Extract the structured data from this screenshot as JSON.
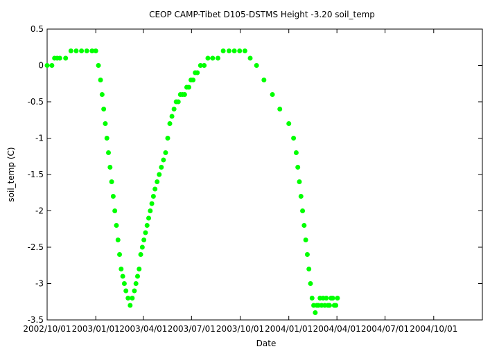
{
  "chart_data": {
    "type": "scatter",
    "title": "CEOP CAMP-Tibet D105-DSTMS Height -3.20 soil_temp",
    "xlabel": "Date",
    "ylabel": "soil_temp (C)",
    "xlim": [
      "2002-10-01",
      "2005-01-01"
    ],
    "ylim": [
      -3.5,
      0.5
    ],
    "x_ticks": [
      "2002/10/01",
      "2003/01/01",
      "2003/04/01",
      "2003/07/01",
      "2003/10/01",
      "2004/01/01",
      "2004/04/01",
      "2004/07/01",
      "2004/10/01"
    ],
    "y_ticks": [
      "0.5",
      "0",
      "-0.5",
      "-1",
      "-1.5",
      "-2",
      "-2.5",
      "-3",
      "-3.5"
    ],
    "grid": false,
    "legend": "none",
    "marker_color": "#00ff00",
    "series": [
      {
        "x": [
          "2002-10-01",
          "2002-10-10",
          "2002-10-15",
          "2002-10-20",
          "2002-10-25",
          "2002-11-05",
          "2002-11-15",
          "2002-11-25",
          "2002-12-05",
          "2002-12-15",
          "2002-12-25",
          "2003-01-01",
          "2003-01-06",
          "2003-01-10",
          "2003-01-13",
          "2003-01-16",
          "2003-01-19",
          "2003-01-22",
          "2003-01-25",
          "2003-01-28",
          "2003-01-31",
          "2003-02-03",
          "2003-02-06",
          "2003-02-09",
          "2003-02-12",
          "2003-02-15",
          "2003-02-18",
          "2003-02-21",
          "2003-02-24",
          "2003-02-27",
          "2003-03-03",
          "2003-03-07",
          "2003-03-11",
          "2003-03-15",
          "2003-03-18",
          "2003-03-21",
          "2003-03-24",
          "2003-03-27",
          "2003-03-30",
          "2003-04-02",
          "2003-04-05",
          "2003-04-08",
          "2003-04-11",
          "2003-04-14",
          "2003-04-17",
          "2003-04-20",
          "2003-04-23",
          "2003-04-27",
          "2003-05-01",
          "2003-05-05",
          "2003-05-09",
          "2003-05-13",
          "2003-05-17",
          "2003-05-21",
          "2003-05-25",
          "2003-05-29",
          "2003-06-02",
          "2003-06-06",
          "2003-06-10",
          "2003-06-14",
          "2003-06-18",
          "2003-06-22",
          "2003-06-26",
          "2003-06-30",
          "2003-07-04",
          "2003-07-08",
          "2003-07-12",
          "2003-07-18",
          "2003-07-25",
          "2003-08-01",
          "2003-08-10",
          "2003-08-20",
          "2003-08-30",
          "2003-09-10",
          "2003-09-20",
          "2003-09-30",
          "2003-10-10",
          "2003-10-20",
          "2003-11-01",
          "2003-11-15",
          "2003-12-01",
          "2003-12-15",
          "2004-01-01",
          "2004-01-10",
          "2004-01-15",
          "2004-01-18",
          "2004-01-21",
          "2004-01-24",
          "2004-01-27",
          "2004-01-30",
          "2004-02-02",
          "2004-02-05",
          "2004-02-08",
          "2004-02-11",
          "2004-02-14",
          "2004-02-17",
          "2004-02-20",
          "2004-02-23",
          "2004-02-26",
          "2004-02-29",
          "2004-03-03",
          "2004-03-06",
          "2004-03-09",
          "2004-03-12",
          "2004-03-15",
          "2004-03-18",
          "2004-03-21",
          "2004-03-24",
          "2004-03-27",
          "2004-03-30",
          "2004-04-02"
        ],
        "y": [
          0.0,
          0.0,
          0.1,
          0.1,
          0.1,
          0.1,
          0.2,
          0.2,
          0.2,
          0.2,
          0.2,
          0.2,
          0.0,
          -0.2,
          -0.4,
          -0.6,
          -0.8,
          -1.0,
          -1.2,
          -1.4,
          -1.6,
          -1.8,
          -2.0,
          -2.2,
          -2.4,
          -2.6,
          -2.8,
          -2.9,
          -3.0,
          -3.1,
          -3.2,
          -3.3,
          -3.2,
          -3.1,
          -3.0,
          -2.9,
          -2.8,
          -2.6,
          -2.5,
          -2.4,
          -2.3,
          -2.2,
          -2.1,
          -2.0,
          -1.9,
          -1.8,
          -1.7,
          -1.6,
          -1.5,
          -1.4,
          -1.3,
          -1.2,
          -1.0,
          -0.8,
          -0.7,
          -0.6,
          -0.5,
          -0.5,
          -0.4,
          -0.4,
          -0.4,
          -0.3,
          -0.3,
          -0.2,
          -0.2,
          -0.1,
          -0.1,
          0.0,
          0.0,
          0.1,
          0.1,
          0.1,
          0.2,
          0.2,
          0.2,
          0.2,
          0.2,
          0.1,
          0.0,
          -0.2,
          -0.4,
          -0.6,
          -0.8,
          -1.0,
          -1.2,
          -1.4,
          -1.6,
          -1.8,
          -2.0,
          -2.2,
          -2.4,
          -2.6,
          -2.8,
          -3.0,
          -3.2,
          -3.3,
          -3.4,
          -3.3,
          -3.3,
          -3.2,
          -3.3,
          -3.2,
          -3.3,
          -3.2,
          -3.3,
          -3.3,
          -3.2,
          -3.2,
          -3.3,
          -3.3,
          -3.2
        ]
      }
    ]
  }
}
